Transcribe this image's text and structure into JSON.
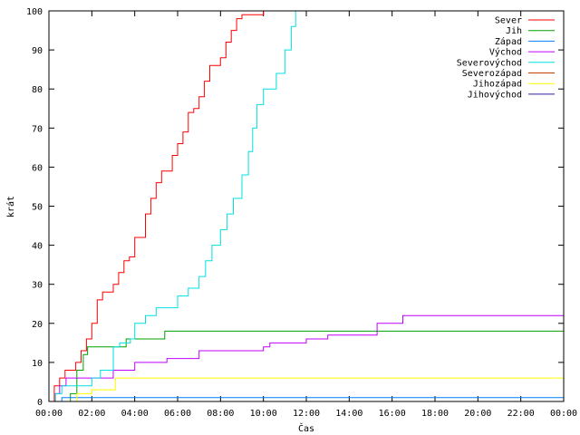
{
  "chart_data": {
    "type": "line",
    "title": "",
    "xlabel": "Čas",
    "ylabel": "krát",
    "xlim": [
      0,
      24
    ],
    "ylim": [
      0,
      100
    ],
    "x_ticks": [
      {
        "v": 0,
        "label": "00:00"
      },
      {
        "v": 2,
        "label": "02:00"
      },
      {
        "v": 4,
        "label": "04:00"
      },
      {
        "v": 6,
        "label": "06:00"
      },
      {
        "v": 8,
        "label": "08:00"
      },
      {
        "v": 10,
        "label": "10:00"
      },
      {
        "v": 12,
        "label": "12:00"
      },
      {
        "v": 14,
        "label": "14:00"
      },
      {
        "v": 16,
        "label": "16:00"
      },
      {
        "v": 18,
        "label": "18:00"
      },
      {
        "v": 20,
        "label": "20:00"
      },
      {
        "v": 22,
        "label": "22:00"
      },
      {
        "v": 24,
        "label": "00:00"
      }
    ],
    "y_ticks": [
      0,
      10,
      20,
      30,
      40,
      50,
      60,
      70,
      80,
      90,
      100
    ],
    "grid": false,
    "legend_position": "top-right",
    "series": [
      {
        "name": "Sever",
        "color": "#ff0000",
        "x": [
          0,
          0.25,
          0.5,
          0.75,
          1.0,
          1.25,
          1.5,
          1.75,
          2.0,
          2.25,
          2.5,
          2.75,
          3.0,
          3.25,
          3.5,
          3.75,
          4.0,
          4.25,
          4.5,
          4.75,
          5.0,
          5.25,
          5.5,
          5.75,
          6.0,
          6.25,
          6.5,
          6.75,
          7.0,
          7.25,
          7.5,
          7.75,
          8.0,
          8.25,
          8.5,
          8.75,
          9.0,
          9.25,
          9.5,
          9.75,
          10.0
        ],
        "y": [
          0,
          4,
          6,
          8,
          8,
          10,
          13,
          16,
          20,
          26,
          28,
          28,
          30,
          33,
          36,
          37,
          42,
          42,
          48,
          52,
          56,
          59,
          59,
          63,
          66,
          69,
          74,
          75,
          78,
          82,
          86,
          86,
          88,
          92,
          95,
          98,
          99,
          99,
          99,
          99,
          100
        ]
      },
      {
        "name": "Jih",
        "color": "#00a000",
        "x": [
          0,
          0.9,
          1.0,
          1.3,
          1.6,
          1.8,
          2.6,
          3.0,
          3.6,
          4.0,
          5.2,
          5.4,
          24
        ],
        "y": [
          0,
          0,
          2,
          8,
          12,
          14,
          14,
          14,
          16,
          16,
          16,
          18,
          18
        ]
      },
      {
        "name": "Západ",
        "color": "#0080ff",
        "x": [
          0,
          0.3,
          0.6,
          24
        ],
        "y": [
          0,
          0,
          1,
          1
        ]
      },
      {
        "name": "Východ",
        "color": "#c000ff",
        "x": [
          0,
          0.3,
          0.5,
          0.8,
          1.3,
          2.0,
          2.8,
          3.0,
          3.5,
          4.0,
          4.5,
          5.0,
          5.5,
          6.3,
          7.0,
          7.5,
          8.3,
          9.0,
          9.5,
          10.0,
          10.3,
          11.0,
          12.0,
          13.0,
          14.0,
          14.5,
          15.0,
          15.3,
          16.0,
          16.5,
          17.0,
          18.0,
          19.0,
          20.0,
          21.0,
          22.0,
          23.0,
          24.0
        ],
        "y": [
          0,
          2,
          4,
          6,
          6,
          6,
          6,
          8,
          8,
          10,
          10,
          10,
          11,
          11,
          13,
          13,
          13,
          13,
          13,
          14,
          15,
          15,
          16,
          17,
          17,
          17,
          17,
          20,
          20,
          22,
          22,
          22,
          22,
          22,
          22,
          22,
          22,
          24
        ]
      },
      {
        "name": "Severovýchod",
        "color": "#00e0e0",
        "x": [
          0,
          0.3,
          0.6,
          1.0,
          1.5,
          2.0,
          2.4,
          3.0,
          3.3,
          3.8,
          4.0,
          4.5,
          5.0,
          5.5,
          6.0,
          6.5,
          7.0,
          7.3,
          7.6,
          8.0,
          8.3,
          8.6,
          9.0,
          9.3,
          9.5,
          9.7,
          10.0,
          10.3,
          10.6,
          11.0,
          11.3,
          11.5
        ],
        "y": [
          0,
          2,
          4,
          4,
          4,
          6,
          8,
          14,
          15,
          16,
          20,
          22,
          24,
          24,
          27,
          29,
          32,
          36,
          40,
          44,
          48,
          52,
          58,
          64,
          70,
          76,
          80,
          80,
          84,
          90,
          96,
          100
        ]
      },
      {
        "name": "Severozápad",
        "color": "#c04000",
        "x": [
          0,
          0.5,
          24
        ],
        "y": [
          0,
          0,
          0
        ]
      },
      {
        "name": "Jihozápad",
        "color": "#ffff00",
        "x": [
          0,
          1.0,
          1.3,
          2.0,
          2.5,
          3.0,
          3.1,
          24
        ],
        "y": [
          0,
          0,
          2,
          3,
          3,
          3,
          6,
          6
        ]
      },
      {
        "name": "Jihovýchod",
        "color": "#3020a0",
        "x": [
          0,
          24
        ],
        "y": [
          0,
          0
        ]
      }
    ]
  }
}
